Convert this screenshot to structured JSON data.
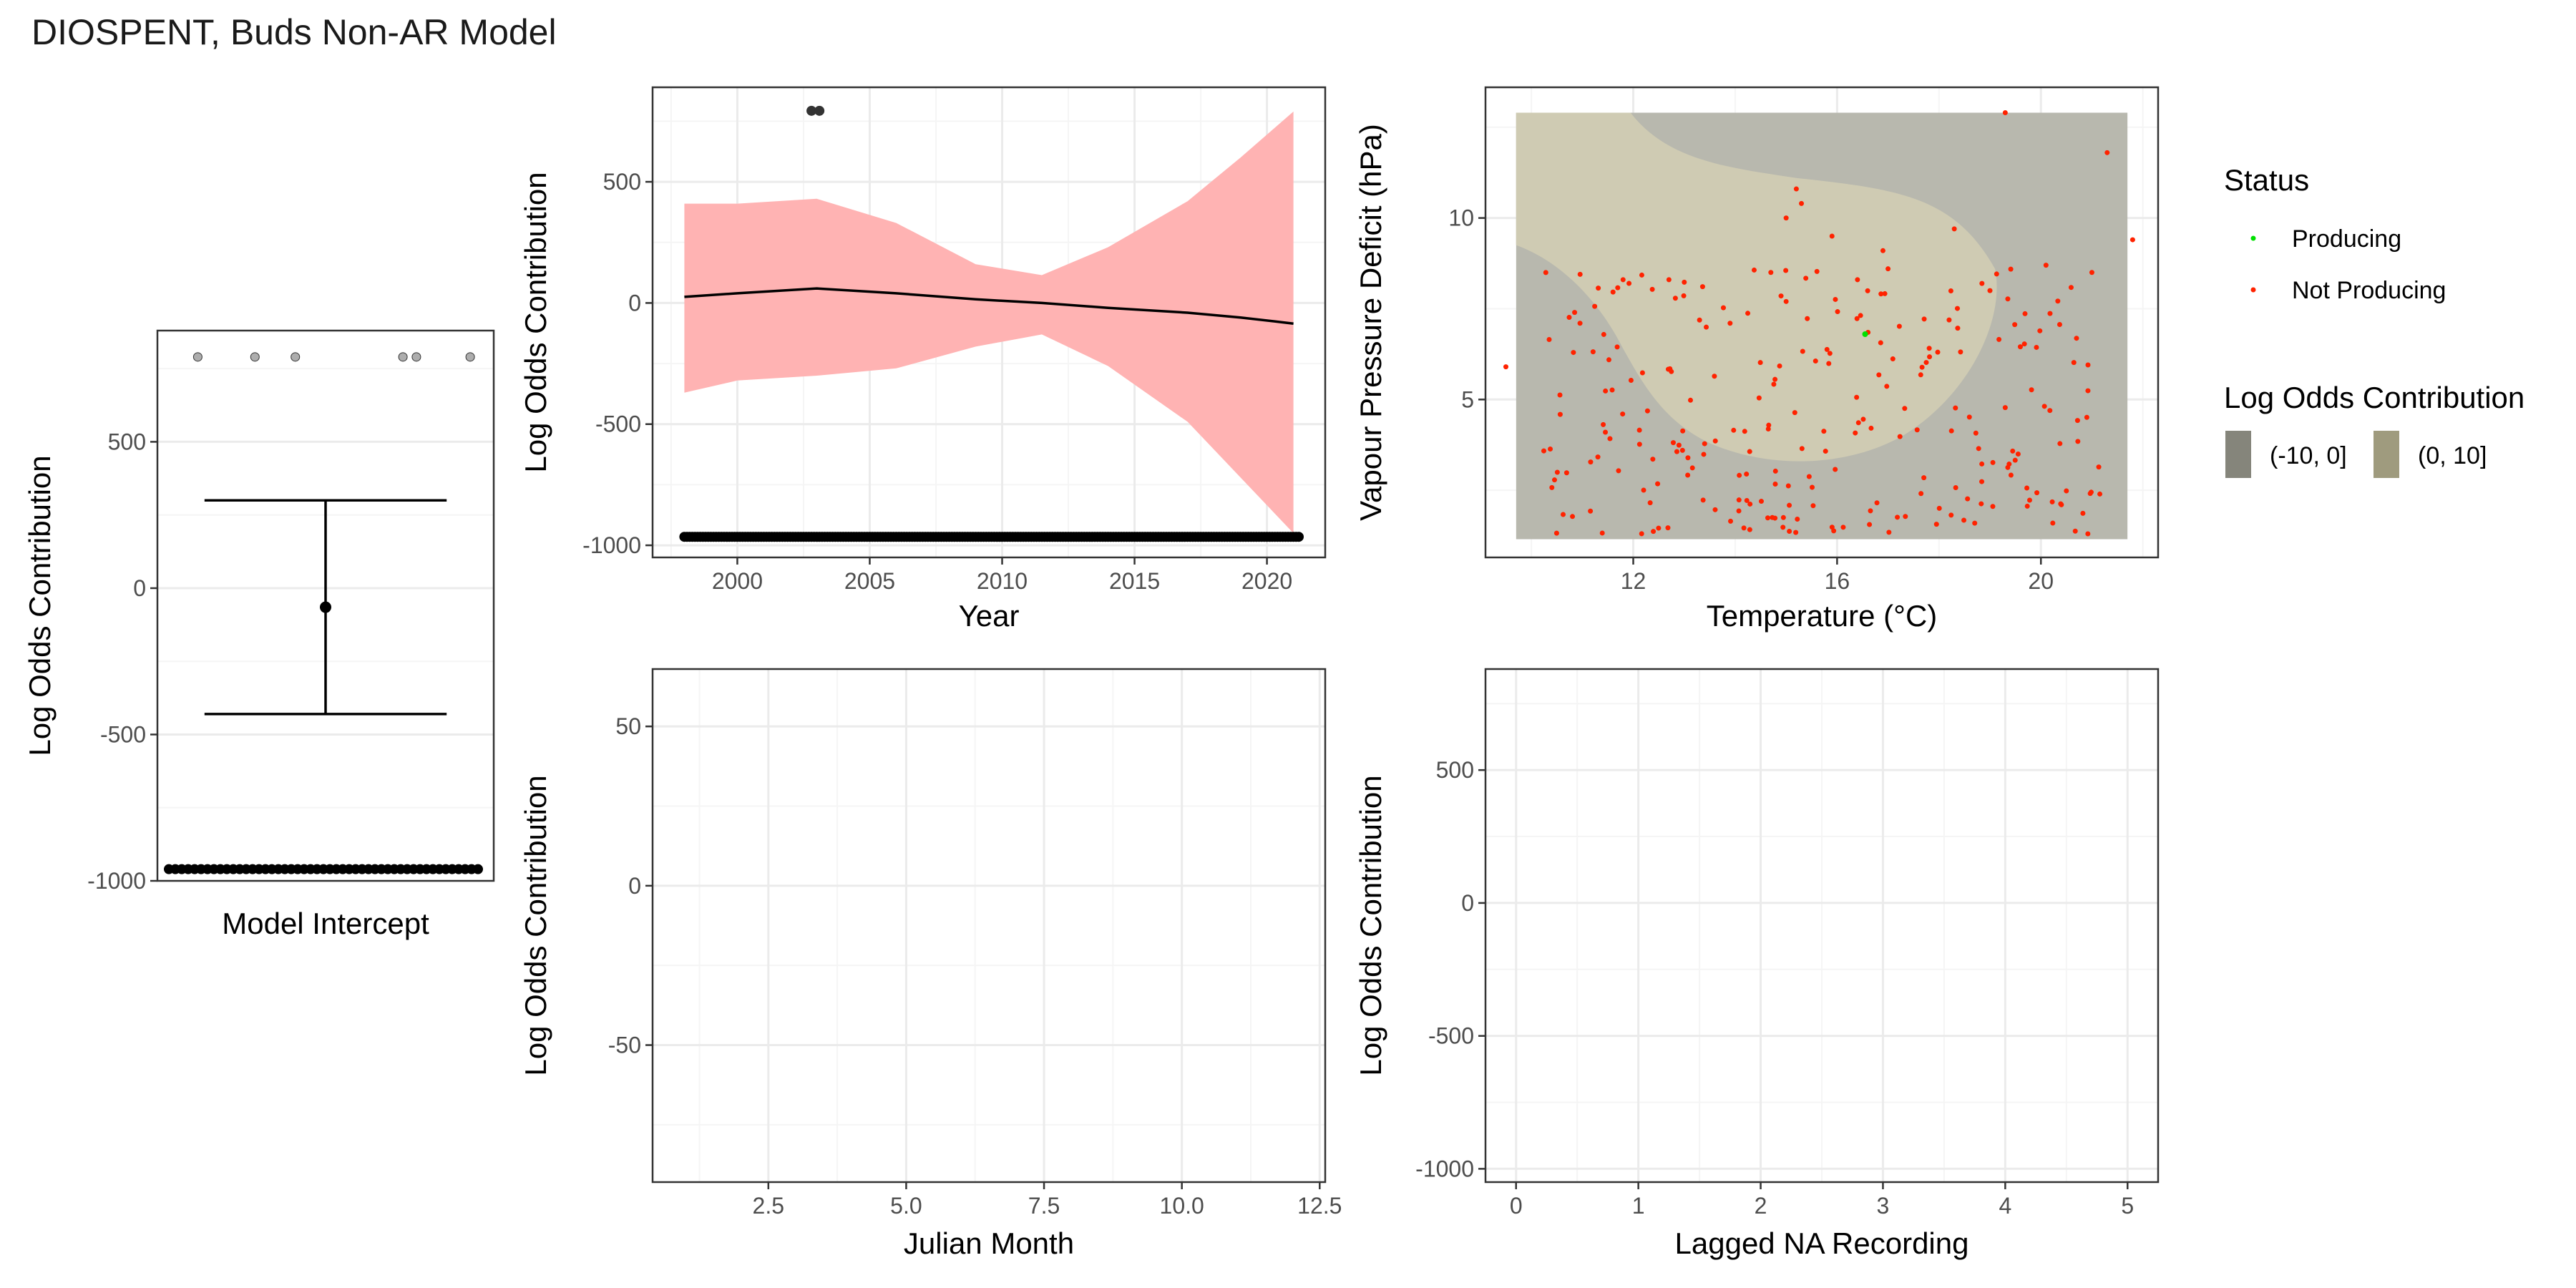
{
  "title": "DIOSPENT, Buds Non-AR Model",
  "colors": {
    "grid_major": "#ebebeb",
    "grid_minor": "#f5f5f5",
    "ribbon": "#ffb3b3",
    "producing": "#00e000",
    "not_producing": "#ff2200",
    "fill_neg": "#b8b8ae",
    "fill_pos": "#cfcbb3",
    "legend_neg": "#85857b",
    "legend_pos": "#9f9b7e"
  },
  "chart_data": [
    {
      "id": "intercept",
      "type": "boxplot",
      "xlabel": "Model Intercept",
      "ylabel": "Log Odds Contribution",
      "ylim": [
        -1000,
        880
      ],
      "yticks": [
        -1000,
        -500,
        0,
        500
      ],
      "ytick_labels": [
        "-1000",
        "-500",
        "0",
        "500"
      ],
      "point_estimate": -65,
      "interval": [
        -430,
        300
      ],
      "rug_value": -960,
      "outlier_value": 790,
      "outlier_x": [
        0.12,
        0.29,
        0.41,
        0.73,
        0.77,
        0.93
      ]
    },
    {
      "id": "year",
      "type": "line",
      "xlabel": "Year",
      "ylabel": "Log Odds Contribution",
      "xlim": [
        1996.8,
        2022.2
      ],
      "ylim": [
        -1050,
        890
      ],
      "xticks": [
        2000,
        2005,
        2010,
        2015,
        2020
      ],
      "xtick_labels": [
        "2000",
        "2005",
        "2010",
        "2015",
        "2020"
      ],
      "yticks": [
        -1000,
        -500,
        0,
        500
      ],
      "ytick_labels": [
        "-1000",
        "-500",
        "0",
        "500"
      ],
      "x": [
        1998,
        2000,
        2003,
        2006,
        2009,
        2011.5,
        2014,
        2017,
        2019,
        2021
      ],
      "fit": [
        25,
        40,
        60,
        40,
        15,
        0,
        -20,
        -40,
        -60,
        -85
      ],
      "lower": [
        -370,
        -320,
        -300,
        -270,
        -180,
        -130,
        -260,
        -490,
        -720,
        -950
      ],
      "upper": [
        410,
        410,
        430,
        330,
        160,
        115,
        230,
        420,
        600,
        790
      ],
      "rug_value": -965,
      "rug_x_range": [
        1998,
        2021.2
      ],
      "outliers": [
        {
          "x": 2002.8,
          "y": 793
        },
        {
          "x": 2003.1,
          "y": 793
        }
      ]
    },
    {
      "id": "temp-vpd",
      "type": "scatter",
      "xlabel": "Temperature (°C)",
      "ylabel": "Vapour Pressure Deficit (hPa)",
      "xlim": [
        9.1,
        22.3
      ],
      "ylim": [
        0.65,
        13.6
      ],
      "xticks": [
        12,
        16,
        20
      ],
      "xtick_labels": [
        "12",
        "16",
        "20"
      ],
      "yticks": [
        5,
        10
      ],
      "ytick_labels": [
        "5",
        "10"
      ],
      "surface_x_range": [
        9.7,
        21.7
      ],
      "surface_y_range": [
        1.15,
        12.9
      ],
      "producing_points": [
        [
          16.55,
          6.8
        ]
      ],
      "not_producing_points": [
        [
          9.5,
          5.9
        ],
        [
          19.3,
          12.9
        ],
        [
          21.3,
          11.8
        ],
        [
          21.8,
          9.4
        ],
        [
          15.2,
          10.8
        ],
        [
          15.0,
          10.0
        ],
        [
          15.9,
          9.5
        ],
        [
          18.3,
          9.7
        ],
        [
          16.9,
          9.1
        ],
        [
          12.7,
          8.3
        ],
        [
          11.8,
          8.3
        ],
        [
          14.7,
          8.5
        ],
        [
          17.0,
          8.6
        ],
        [
          20.1,
          8.7
        ],
        [
          15.3,
          10.4
        ],
        [
          16.4,
          8.3
        ],
        [
          19.0,
          8.0
        ],
        [
          21.0,
          8.5
        ],
        [
          13.9,
          7.1
        ],
        [
          15.0,
          7.7
        ]
      ],
      "not_producing_random": {
        "count": 240,
        "x_range": [
          10.2,
          21.2
        ],
        "y_range": [
          1.3,
          8.6
        ],
        "seed": 7
      }
    },
    {
      "id": "julian-month",
      "type": "line",
      "xlabel": "Julian Month",
      "ylabel": "Log Odds Contribution",
      "xlim": [
        0.4,
        12.6
      ],
      "ylim": [
        -93,
        68
      ],
      "xticks": [
        2.5,
        5.0,
        7.5,
        10.0,
        12.5
      ],
      "xtick_labels": [
        "2.5",
        "5.0",
        "7.5",
        "10.0",
        "12.5"
      ],
      "yticks": [
        -50,
        0,
        50
      ],
      "ytick_labels": [
        "-50",
        "0",
        "50"
      ]
    },
    {
      "id": "lagged-na",
      "type": "line",
      "xlabel": "Lagged NA Recording",
      "ylabel": "Log Odds Contribution",
      "xlim": [
        -0.25,
        5.25
      ],
      "ylim": [
        -1050,
        880
      ],
      "xticks": [
        0,
        1,
        2,
        3,
        4,
        5
      ],
      "xtick_labels": [
        "0",
        "1",
        "2",
        "3",
        "4",
        "5"
      ],
      "yticks": [
        -1000,
        -500,
        0,
        500
      ],
      "ytick_labels": [
        "-1000",
        "-500",
        "0",
        "500"
      ]
    }
  ],
  "legend": {
    "status_title": "Status",
    "status_items": [
      {
        "label": "Producing",
        "color": "#00e000"
      },
      {
        "label": "Not Producing",
        "color": "#ff2200"
      }
    ],
    "contribution_title": "Log Odds Contribution",
    "contribution_items": [
      {
        "label": "(-10, 0]",
        "color": "#85857b"
      },
      {
        "label": "(0, 10]",
        "color": "#9f9b7e"
      }
    ]
  }
}
